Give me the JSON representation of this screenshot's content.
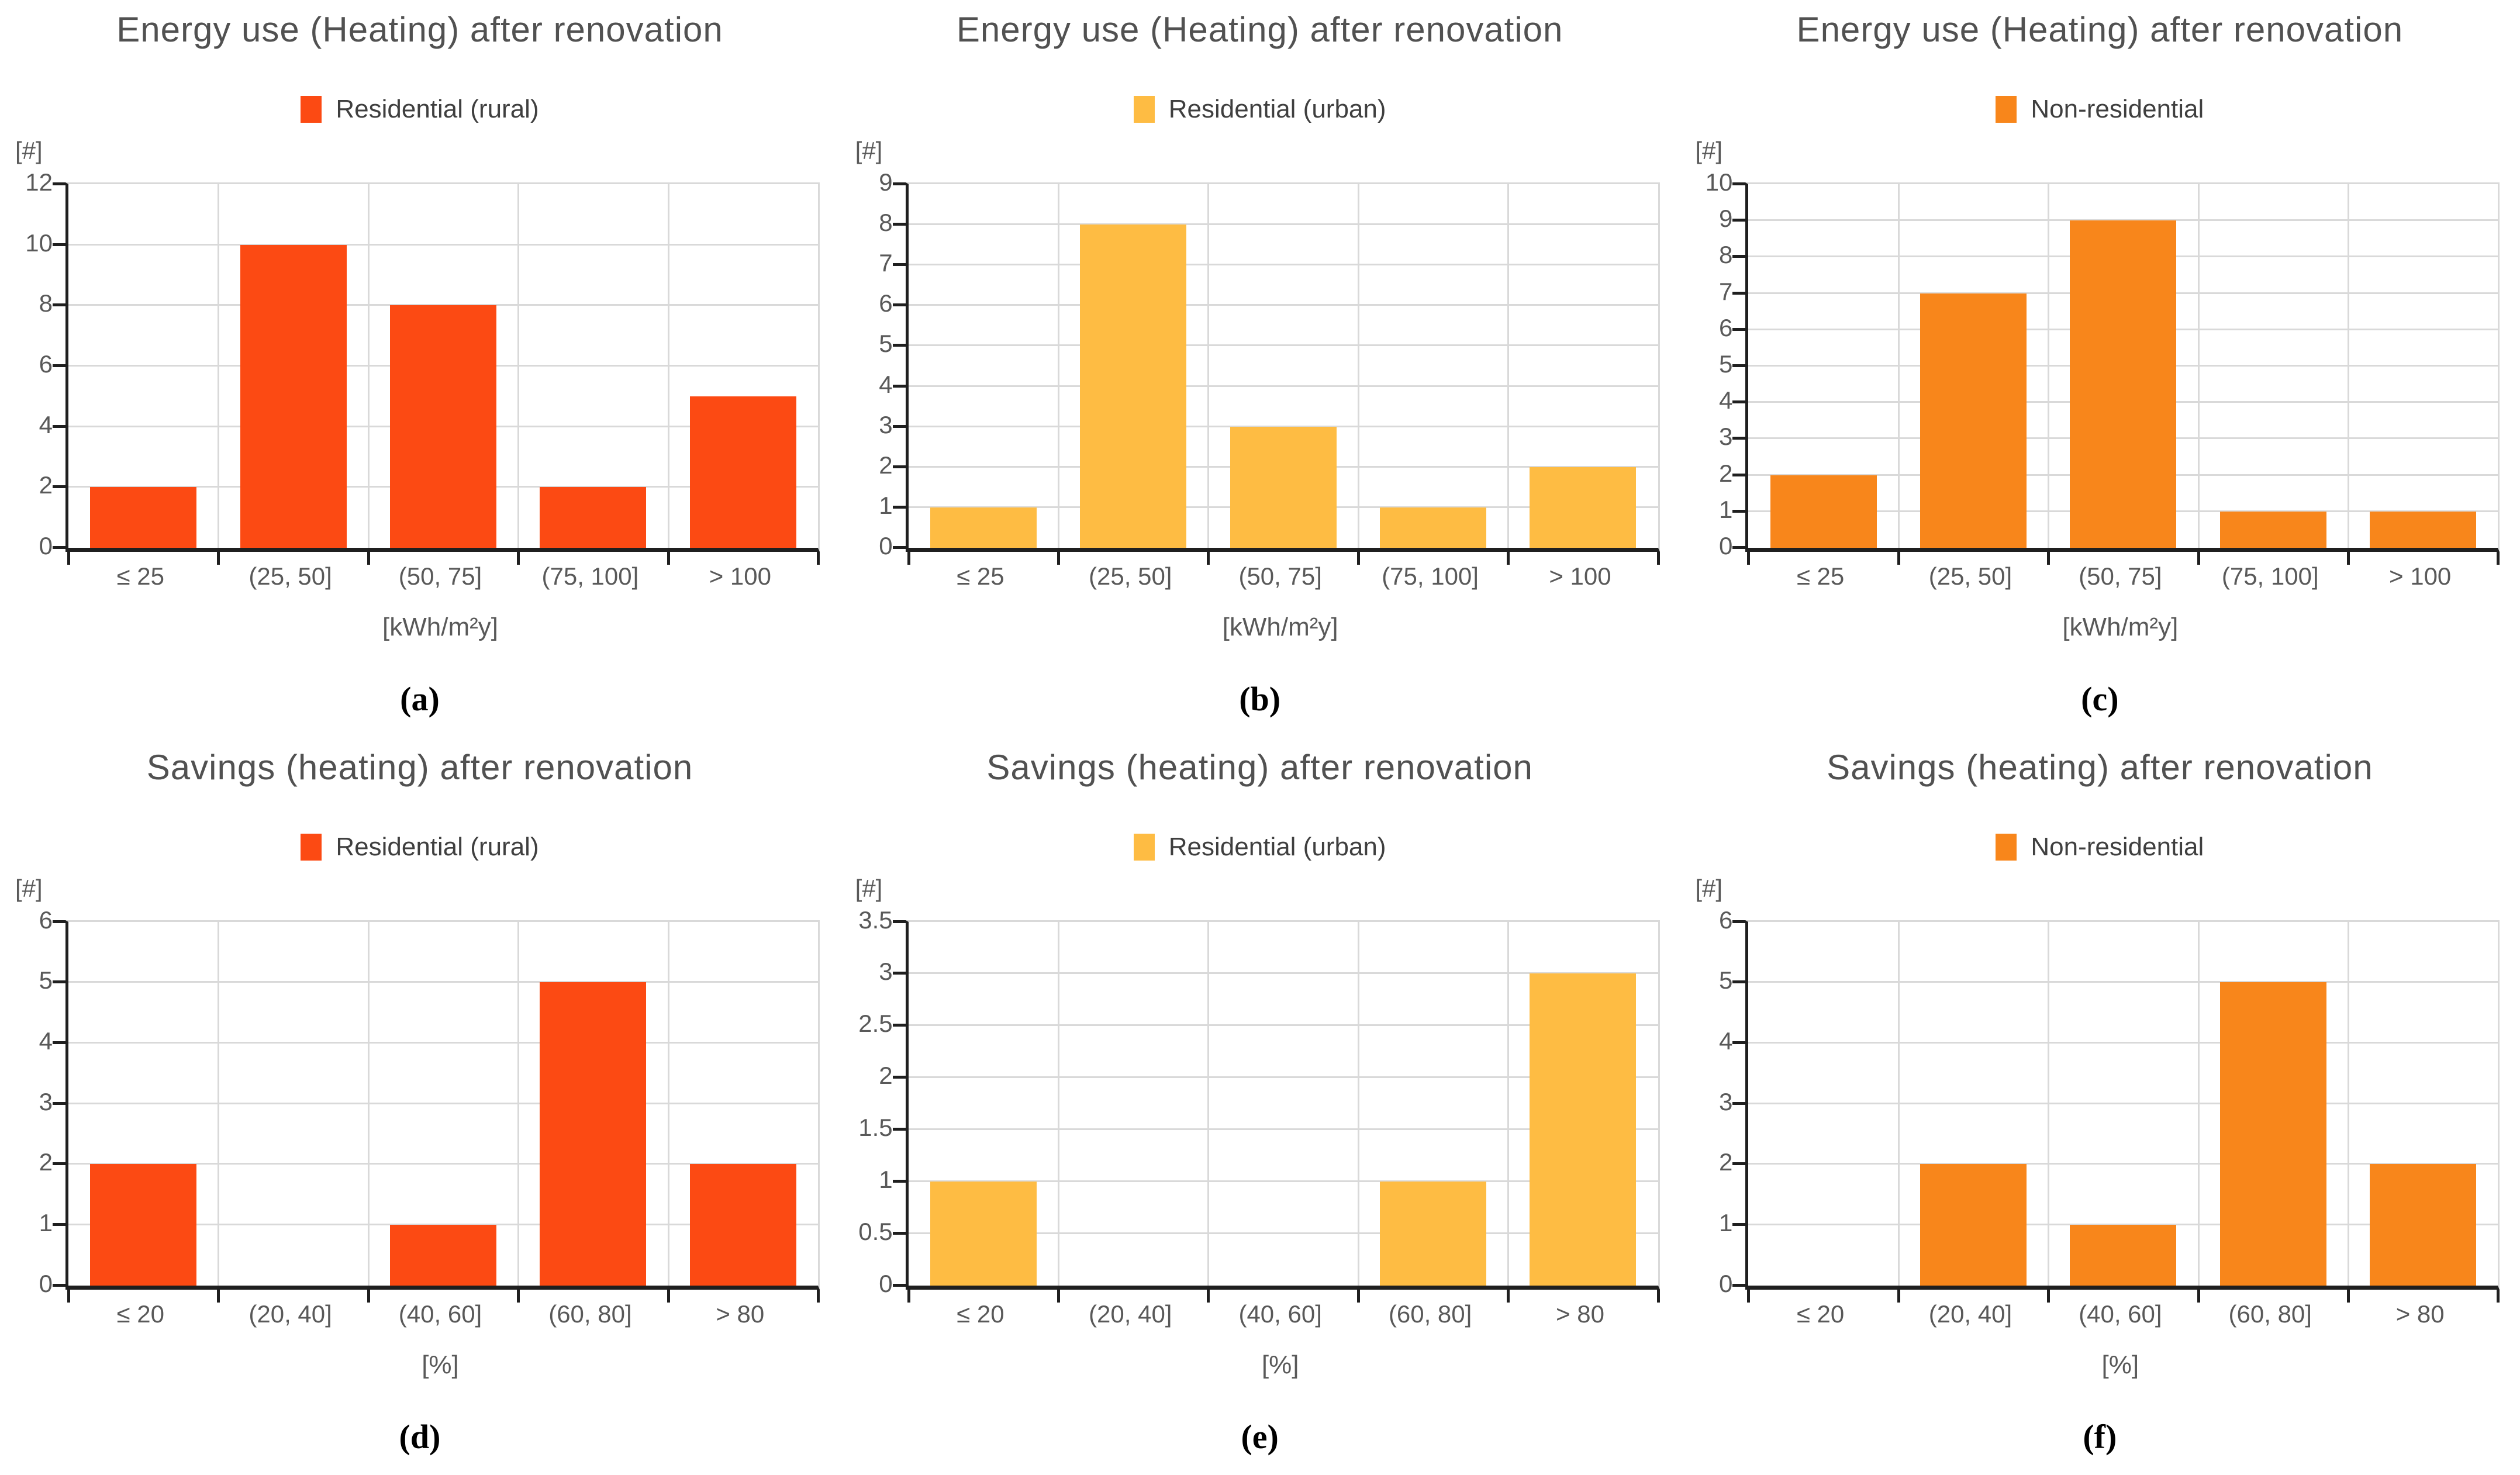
{
  "figure": {
    "background": "#ffffff",
    "grid_color": "#d9d9d9",
    "axis_color": "#1f1f1f",
    "text_color": "#595959",
    "title_color": "#515151"
  },
  "chart_data": [
    {
      "id": "a",
      "type": "bar",
      "title": "Energy use (Heating) after renovation",
      "legend": "Residential (rural)",
      "color": "#fc4a13",
      "ylabel": "[#]",
      "xlabel": "[kWh/m²y]",
      "categories": [
        "≤ 25",
        "(25, 50]",
        "(50, 75]",
        "(75, 100]",
        "> 100"
      ],
      "values": [
        2,
        10,
        8,
        2,
        5
      ],
      "ylim": [
        0,
        12
      ],
      "ytick_step": 2,
      "grid": true,
      "legend_position": "top",
      "caption": "(a)"
    },
    {
      "id": "b",
      "type": "bar",
      "title": "Energy use (Heating) after renovation",
      "legend": "Residential (urban)",
      "color": "#febc43",
      "ylabel": "[#]",
      "xlabel": "[kWh/m²y]",
      "categories": [
        "≤ 25",
        "(25, 50]",
        "(50, 75]",
        "(75, 100]",
        "> 100"
      ],
      "values": [
        1,
        8,
        3,
        1,
        2
      ],
      "ylim": [
        0,
        9
      ],
      "ytick_step": 1,
      "grid": true,
      "legend_position": "top",
      "caption": "(b)"
    },
    {
      "id": "c",
      "type": "bar",
      "title": "Energy use (Heating) after renovation",
      "legend": "Non-residential",
      "color": "#f8861b",
      "ylabel": "[#]",
      "xlabel": "[kWh/m²y]",
      "categories": [
        "≤ 25",
        "(25, 50]",
        "(50, 75]",
        "(75, 100]",
        "> 100"
      ],
      "values": [
        2,
        7,
        9,
        1,
        1
      ],
      "ylim": [
        0,
        10
      ],
      "ytick_step": 1,
      "grid": true,
      "legend_position": "top",
      "caption": "(c)"
    },
    {
      "id": "d",
      "type": "bar",
      "title": "Savings (heating) after renovation",
      "legend": "Residential (rural)",
      "color": "#fc4a13",
      "ylabel": "[#]",
      "xlabel": "[%]",
      "categories": [
        "≤ 20",
        "(20, 40]",
        "(40, 60]",
        "(60, 80]",
        "> 80"
      ],
      "values": [
        2,
        0,
        1,
        5,
        2
      ],
      "ylim": [
        0,
        6
      ],
      "ytick_step": 1,
      "grid": true,
      "legend_position": "top",
      "caption": "(d)"
    },
    {
      "id": "e",
      "type": "bar",
      "title": "Savings (heating) after renovation",
      "legend": "Residential (urban)",
      "color": "#febc43",
      "ylabel": "[#]",
      "xlabel": "[%]",
      "categories": [
        "≤ 20",
        "(20, 40]",
        "(40, 60]",
        "(60, 80]",
        "> 80"
      ],
      "values": [
        1,
        0,
        0,
        1,
        3
      ],
      "ylim": [
        0,
        3.5
      ],
      "ytick_step": 0.5,
      "grid": true,
      "legend_position": "top",
      "caption": "(e)"
    },
    {
      "id": "f",
      "type": "bar",
      "title": "Savings (heating) after renovation",
      "legend": "Non-residential",
      "color": "#f8861b",
      "ylabel": "[#]",
      "xlabel": "[%]",
      "categories": [
        "≤ 20",
        "(20, 40]",
        "(40, 60]",
        "(60, 80]",
        "> 80"
      ],
      "values": [
        0,
        2,
        1,
        5,
        2
      ],
      "ylim": [
        0,
        6
      ],
      "ytick_step": 1,
      "grid": true,
      "legend_position": "top",
      "caption": "(f)"
    }
  ]
}
